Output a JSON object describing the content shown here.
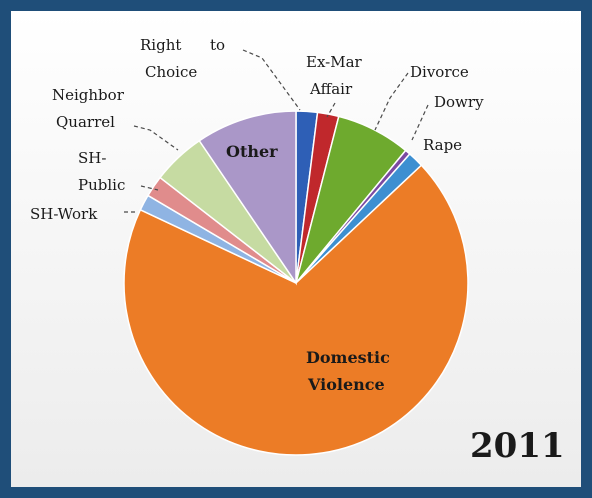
{
  "chart_data": {
    "type": "pie",
    "title": "",
    "annotation": "2011",
    "slices": [
      {
        "label": "Right to Choice",
        "value": 2,
        "color": "#2e5fb6"
      },
      {
        "label": "Ex-Mar Affair",
        "value": 2,
        "color": "#c0282c"
      },
      {
        "label": "Divorce",
        "value": 7,
        "color": "#6eaa2e"
      },
      {
        "label": "Dowry",
        "value": 0.5,
        "color": "#7b4aa2"
      },
      {
        "label": "Rape",
        "value": 1.5,
        "color": "#3d8fd1"
      },
      {
        "label": "Domestic Violence",
        "value": 69,
        "color": "#ec7c26"
      },
      {
        "label": "SH-Work",
        "value": 1.5,
        "color": "#8fb4e3"
      },
      {
        "label": "SH-Public",
        "value": 2,
        "color": "#e08c8c"
      },
      {
        "label": "Neighbor Quarrel",
        "value": 5,
        "color": "#c6dba2"
      },
      {
        "label": "Other",
        "value": 9.5,
        "color": "#aa97c8"
      }
    ]
  }
}
